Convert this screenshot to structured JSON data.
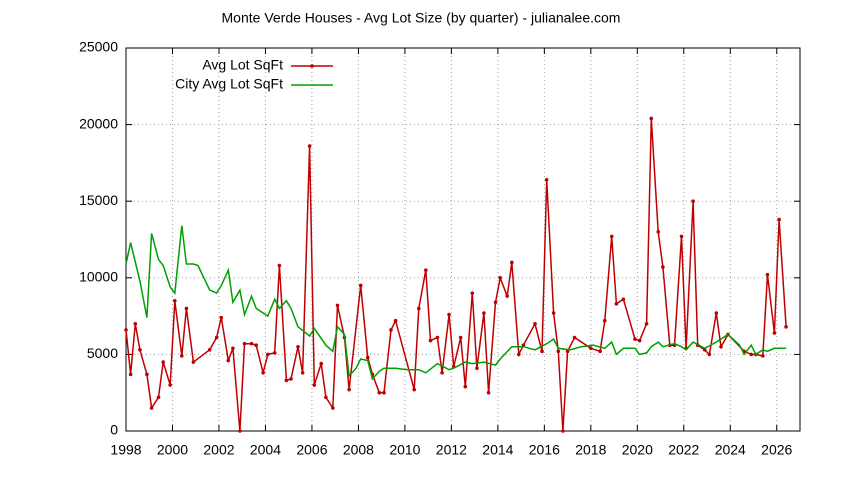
{
  "chart_data": {
    "type": "line",
    "title": "Monte Verde Houses - Avg Lot Size (by quarter) - julianalee.com",
    "xlim": [
      1998,
      2027
    ],
    "ylim": [
      0,
      25000
    ],
    "xticks": [
      1998,
      2000,
      2002,
      2004,
      2006,
      2008,
      2010,
      2012,
      2014,
      2016,
      2018,
      2020,
      2022,
      2024,
      2026
    ],
    "yticks": [
      0,
      5000,
      10000,
      15000,
      20000,
      25000
    ],
    "grid": true,
    "legend": "top-left",
    "series": [
      {
        "name": "Avg Lot SqFt",
        "color": "#c00000",
        "markers": true,
        "x": [
          1998.0,
          1998.2,
          1998.4,
          1998.6,
          1998.9,
          1999.1,
          1999.4,
          1999.6,
          1999.9,
          2000.1,
          2000.4,
          2000.6,
          2000.9,
          2001.6,
          2001.9,
          2002.1,
          2002.4,
          2002.6,
          2002.9,
          2003.1,
          2003.4,
          2003.6,
          2003.9,
          2004.1,
          2004.4,
          2004.6,
          2004.9,
          2005.1,
          2005.4,
          2005.6,
          2005.9,
          2006.1,
          2006.4,
          2006.6,
          2006.9,
          2007.1,
          2007.4,
          2007.6,
          2008.1,
          2008.4,
          2008.6,
          2008.9,
          2009.1,
          2009.4,
          2009.6,
          2010.4,
          2010.6,
          2010.9,
          2011.1,
          2011.4,
          2011.6,
          2011.9,
          2012.1,
          2012.4,
          2012.6,
          2012.9,
          2013.1,
          2013.4,
          2013.6,
          2013.9,
          2014.1,
          2014.4,
          2014.6,
          2014.9,
          2015.1,
          2015.6,
          2015.9,
          2016.1,
          2016.4,
          2016.6,
          2016.8,
          2017.0,
          2017.3,
          2018.0,
          2018.4,
          2018.6,
          2018.9,
          2019.1,
          2019.4,
          2019.9,
          2020.1,
          2020.4,
          2020.6,
          2020.9,
          2021.1,
          2021.4,
          2021.6,
          2021.9,
          2022.1,
          2022.4,
          2022.6,
          2022.9,
          2023.1,
          2023.4,
          2023.6,
          2023.9,
          2024.6,
          2024.9,
          2025.1,
          2025.4,
          2025.6,
          2025.9,
          2026.1,
          2026.4
        ],
        "values": [
          6600,
          3700,
          7000,
          5300,
          3700,
          1500,
          2200,
          4500,
          3000,
          8500,
          4900,
          8000,
          4500,
          5300,
          6100,
          7400,
          4600,
          5400,
          0,
          5700,
          5700,
          5600,
          3800,
          5000,
          5100,
          10800,
          3300,
          3400,
          5500,
          3800,
          18600,
          3000,
          4400,
          2200,
          1500,
          8200,
          6100,
          2700,
          9500,
          4800,
          3700,
          2500,
          2500,
          6600,
          7200,
          2700,
          8000,
          10500,
          5900,
          6100,
          3800,
          7600,
          4200,
          6100,
          2900,
          9000,
          4100,
          7700,
          2500,
          8400,
          10000,
          8800,
          11000,
          5000,
          5600,
          7000,
          5200,
          16400,
          7700,
          5200,
          0,
          5200,
          6100,
          5400,
          5200,
          7200,
          12700,
          8300,
          8600,
          6000,
          5900,
          7000,
          20400,
          13000,
          10700,
          5600,
          5600,
          12700,
          5400,
          15000,
          5600,
          5300,
          5000,
          7700,
          5500,
          6300,
          5200,
          5000,
          5000,
          4900,
          10200,
          6400,
          13800,
          6800
        ]
      },
      {
        "name": "City Avg Lot SqFt",
        "color": "#00a000",
        "markers": false,
        "x": [
          1998.0,
          1998.2,
          1998.6,
          1998.9,
          1999.1,
          1999.4,
          1999.6,
          1999.9,
          2000.1,
          2000.4,
          2000.6,
          2000.9,
          2001.1,
          2001.6,
          2001.9,
          2002.1,
          2002.4,
          2002.6,
          2002.9,
          2003.1,
          2003.4,
          2003.6,
          2004.1,
          2004.4,
          2004.6,
          2004.9,
          2005.1,
          2005.4,
          2005.9,
          2006.1,
          2006.6,
          2006.9,
          2007.1,
          2007.4,
          2007.6,
          2007.9,
          2008.1,
          2008.4,
          2008.6,
          2008.9,
          2009.1,
          2009.6,
          2010.1,
          2010.6,
          2010.9,
          2011.4,
          2011.9,
          2012.1,
          2012.6,
          2012.9,
          2013.4,
          2013.9,
          2014.1,
          2014.6,
          2015.1,
          2015.6,
          2016.1,
          2016.4,
          2016.6,
          2017.1,
          2017.6,
          2018.1,
          2018.6,
          2018.9,
          2019.1,
          2019.4,
          2019.9,
          2020.1,
          2020.4,
          2020.6,
          2020.9,
          2021.1,
          2021.6,
          2021.9,
          2022.1,
          2022.4,
          2022.9,
          2023.4,
          2023.9,
          2024.4,
          2024.6,
          2024.9,
          2025.1,
          2025.4,
          2025.6,
          2025.9,
          2026.4
        ],
        "values": [
          10900,
          12300,
          9800,
          7400,
          12900,
          11200,
          10800,
          9400,
          9000,
          13400,
          10900,
          10900,
          10800,
          9200,
          9000,
          9500,
          10500,
          8400,
          9200,
          7600,
          8800,
          8000,
          7500,
          8600,
          8000,
          8500,
          8000,
          6800,
          6200,
          6700,
          5600,
          5200,
          6800,
          6300,
          3600,
          4100,
          4700,
          4600,
          3400,
          3900,
          4100,
          4100,
          4000,
          4000,
          3800,
          4400,
          4000,
          4100,
          4500,
          4400,
          4500,
          4300,
          4700,
          5500,
          5500,
          5300,
          5700,
          6000,
          5400,
          5300,
          5500,
          5600,
          5400,
          5800,
          5000,
          5400,
          5400,
          5000,
          5100,
          5500,
          5800,
          5500,
          5700,
          5500,
          5300,
          5800,
          5400,
          5800,
          6300,
          5600,
          5000,
          5600,
          5000,
          5300,
          5200,
          5400,
          5400
        ]
      }
    ]
  }
}
